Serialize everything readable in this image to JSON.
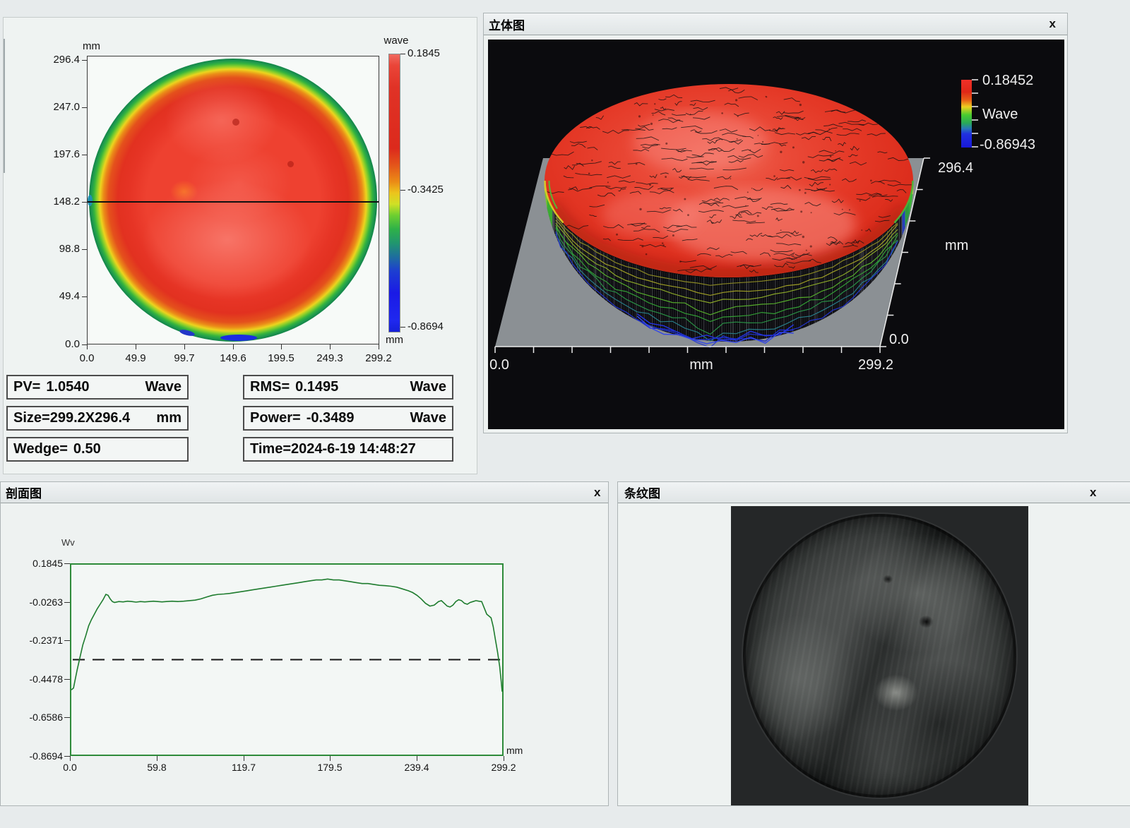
{
  "surface_map_panel": {
    "y_unit": "mm",
    "y_ticks": [
      "296.4",
      "247.0",
      "197.6",
      "148.2",
      "98.8",
      "49.4",
      "0.0"
    ],
    "x_ticks": [
      "0.0",
      "49.9",
      "99.7",
      "149.6",
      "199.5",
      "249.3",
      "299.2"
    ],
    "colorbar": {
      "title": "wave",
      "tick_labels": [
        "0.1845",
        "-0.3425",
        "-0.8694"
      ],
      "bottom_unit": "mm"
    },
    "stats": {
      "pv": {
        "label": "PV=",
        "value": "1.0540",
        "unit": "Wave"
      },
      "rms": {
        "label": "RMS=",
        "value": "0.1495",
        "unit": "Wave"
      },
      "size": {
        "label": "Size=",
        "value": "299.2X296.4",
        "unit": "mm"
      },
      "power": {
        "label": "Power=",
        "value": "-0.3489",
        "unit": "Wave"
      },
      "wedge": {
        "label": "Wedge=",
        "value": "0.50"
      },
      "time": {
        "label": "Time=",
        "value": "2024-6-19 14:48:27"
      }
    }
  },
  "surface_3d_panel": {
    "title": "立体图",
    "close_label": "x",
    "colorbar": {
      "max": "0.18452",
      "label": "Wave",
      "min": "-0.86943"
    },
    "x_axis": {
      "min": "0.0",
      "unit": "mm",
      "max": "299.2"
    },
    "depth_axis": {
      "max": "296.4",
      "unit": "mm",
      "min": "0.0"
    }
  },
  "profile_panel": {
    "title": "剖面图",
    "close_label": "x",
    "y_label": "Wv",
    "y_ticks": [
      "0.1845",
      "-0.0263",
      "-0.2371",
      "-0.4478",
      "-0.6586",
      "-0.8694"
    ],
    "x_ticks": [
      "0.0",
      "59.8",
      "119.7",
      "179.5",
      "239.4",
      "299.2"
    ],
    "x_unit": "mm"
  },
  "fringe_panel": {
    "title": "条纹图",
    "close_label": "x"
  },
  "chart_data": [
    {
      "id": "wavefront_map_2d",
      "type": "heatmap",
      "title": "wave",
      "xlabel": "mm",
      "ylabel": "mm",
      "xlim": [
        0,
        299.2
      ],
      "ylim": [
        0,
        296.4
      ],
      "x_ticks": [
        0.0,
        49.9,
        99.7,
        149.6,
        199.5,
        249.3,
        299.2
      ],
      "y_ticks": [
        0.0,
        49.4,
        98.8,
        148.2,
        197.6,
        247.0,
        296.4
      ],
      "zlim": [
        -0.8694,
        0.1845
      ],
      "z_unit": "wave",
      "colorbar_ticks": [
        0.1845,
        -0.3425,
        -0.8694
      ],
      "cross_section_y": 148.2,
      "description": "circular optic wavefront map; interior ~0 wave (red) with orange-yellow-green rim falling to -0.87 wave (blue) at edge; blue patches at bottom edge"
    },
    {
      "id": "surface_3d",
      "type": "heatmap",
      "projection": "3d-surface",
      "xlim": [
        0,
        299.2
      ],
      "x_unit": "mm",
      "depth_lim": [
        0,
        296.4
      ],
      "depth_unit": "mm",
      "zlim": [
        -0.86943,
        0.18452
      ],
      "z_unit": "Wave",
      "colorbar_ticks": [
        0.18452,
        -0.86943
      ],
      "description": "3D dome rendering of the same wavefront: flat red top near +0.18 wave with black contour noise, steep waterfall skirt to the base plane with yellow/green contour bands and blue contours near the bottom minimum"
    },
    {
      "id": "profile_line",
      "type": "line",
      "xlabel": "mm",
      "ylabel": "Wv",
      "xlim": [
        0,
        299.2
      ],
      "ylim": [
        -0.8694,
        0.1845
      ],
      "x_ticks": [
        0.0,
        59.8,
        119.7,
        179.5,
        239.4,
        299.2
      ],
      "y_ticks": [
        0.1845,
        -0.0263,
        -0.2371,
        -0.4478,
        -0.6586,
        -0.8694
      ],
      "reference_line": -0.3425,
      "line_color": "#1e7c2e",
      "x": [
        0,
        1.5,
        2.5,
        4,
        6,
        8,
        10,
        12,
        14,
        16,
        18,
        20,
        22,
        24,
        25.5,
        27,
        28.5,
        30,
        33,
        36,
        39,
        42,
        45,
        48,
        51,
        54,
        57,
        60,
        63,
        66,
        70,
        74,
        78,
        82,
        86,
        90,
        94,
        98,
        102,
        106,
        110,
        114,
        118,
        122,
        126,
        130,
        134,
        138,
        142,
        146,
        150,
        154,
        158,
        162,
        166,
        170,
        174,
        178,
        182,
        186,
        190,
        194,
        198,
        202,
        206,
        210,
        214,
        218,
        222,
        226,
        230,
        234,
        237,
        240,
        243,
        246,
        249,
        252,
        255,
        257,
        259,
        261,
        263,
        265,
        267,
        269,
        271,
        273,
        275,
        277,
        279,
        281,
        283,
        285,
        287,
        288.5,
        290,
        291.5,
        293,
        294.5,
        296,
        297.5,
        298.5,
        299.2
      ],
      "y": [
        -0.51,
        -0.5,
        -0.46,
        -0.4,
        -0.33,
        -0.26,
        -0.21,
        -0.155,
        -0.12,
        -0.09,
        -0.06,
        -0.035,
        -0.01,
        0.02,
        0.015,
        -0.005,
        -0.02,
        -0.025,
        -0.02,
        -0.022,
        -0.018,
        -0.02,
        -0.023,
        -0.02,
        -0.022,
        -0.02,
        -0.018,
        -0.02,
        -0.022,
        -0.02,
        -0.018,
        -0.02,
        -0.018,
        -0.015,
        -0.012,
        -0.005,
        0.005,
        0.015,
        0.02,
        0.022,
        0.025,
        0.03,
        0.035,
        0.04,
        0.045,
        0.05,
        0.055,
        0.06,
        0.065,
        0.07,
        0.075,
        0.08,
        0.085,
        0.09,
        0.095,
        0.1,
        0.1,
        0.105,
        0.1,
        0.1,
        0.095,
        0.09,
        0.085,
        0.08,
        0.08,
        0.075,
        0.07,
        0.068,
        0.065,
        0.06,
        0.05,
        0.04,
        0.03,
        0.015,
        -0.005,
        -0.03,
        -0.045,
        -0.04,
        -0.02,
        -0.015,
        -0.03,
        -0.045,
        -0.05,
        -0.04,
        -0.02,
        -0.01,
        -0.015,
        -0.03,
        -0.035,
        -0.025,
        -0.02,
        -0.015,
        -0.018,
        -0.02,
        -0.06,
        -0.09,
        -0.1,
        -0.11,
        -0.16,
        -0.23,
        -0.3,
        -0.38,
        -0.46,
        -0.52
      ]
    }
  ]
}
